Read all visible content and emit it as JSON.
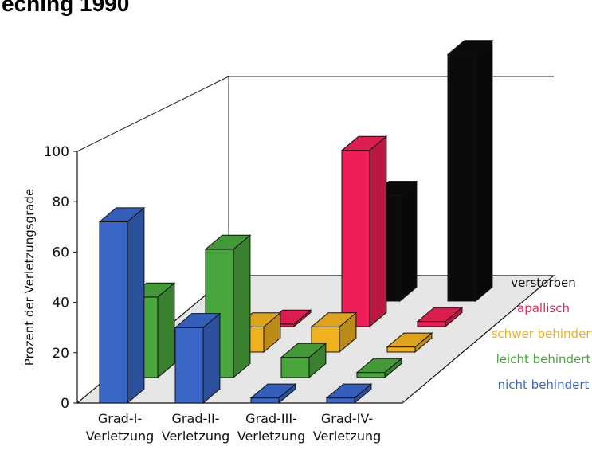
{
  "header": {
    "title_fragment": "eching 1990"
  },
  "chart_data": {
    "type": "bar",
    "subtype": "3d-grouped",
    "ylabel": "Prozent der Verletzungsgrade",
    "ylim": [
      0,
      100
    ],
    "yticks": [
      0,
      20,
      40,
      60,
      80,
      100
    ],
    "grid": false,
    "legend_placement": "right",
    "categories": [
      [
        "Grad-I-",
        "Verletzung"
      ],
      [
        "Grad-II-",
        "Verletzung"
      ],
      [
        "Grad-III-",
        "Verletzung"
      ],
      [
        "Grad-IV-",
        "Verletzung"
      ]
    ],
    "series": [
      {
        "name": "nicht behindert",
        "color": "#3a66c8",
        "values": [
          72,
          30,
          2,
          2
        ]
      },
      {
        "name": "leicht behindert",
        "color": "#49a63c",
        "values": [
          32,
          51,
          8,
          2
        ]
      },
      {
        "name": "schwer behindert",
        "color": "#f0b11e",
        "values": [
          0,
          10,
          10,
          2
        ]
      },
      {
        "name": "apallisch",
        "color": "#ee1f56",
        "values": [
          0,
          1,
          70,
          2
        ]
      },
      {
        "name": "verstorben",
        "color": "#0b0b0b",
        "values": [
          0,
          0,
          42,
          98
        ]
      }
    ]
  }
}
